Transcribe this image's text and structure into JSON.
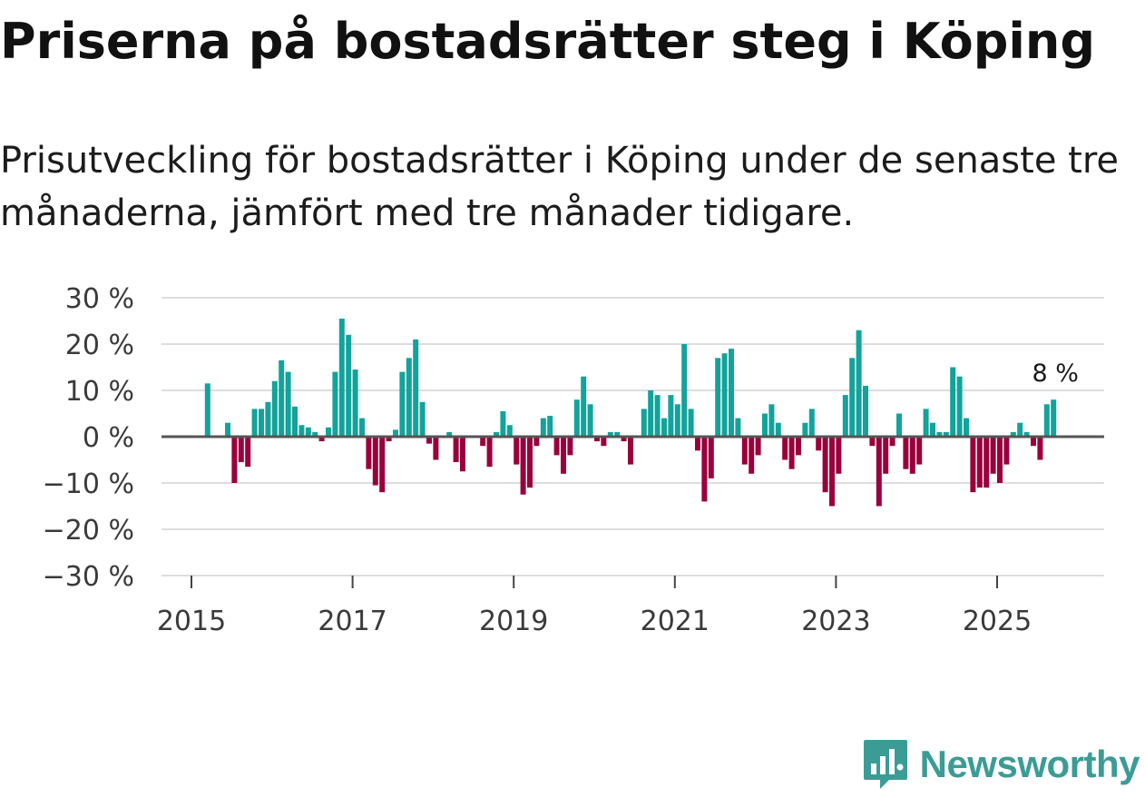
{
  "title": "Priserna på bostadsrätter steg i Köping",
  "subtitle": "Prisutveckling för bostadsrätter i Köping under de senaste tre månaderna, jämfört med tre månader tidigare.",
  "brand": {
    "name": "Newsworthy",
    "color": "#3b9c96",
    "icon": "newsworthy-logo-icon"
  },
  "colors": {
    "positive": "#12a39b",
    "negative": "#9a003c",
    "grid": "#dddddd",
    "zero_line": "#555555"
  },
  "chart_data": {
    "type": "bar",
    "title": "Priserna på bostadsrätter steg i Köping",
    "xlabel": "",
    "ylabel": "",
    "ylim": [
      -30,
      30
    ],
    "yticks": [
      30,
      20,
      10,
      0,
      -10,
      -20,
      -30
    ],
    "ytick_labels": [
      "30 %",
      "20 %",
      "10 %",
      "0 %",
      "−10 %",
      "−20 %",
      "−30 %"
    ],
    "xticks": [
      "2015",
      "2017",
      "2019",
      "2021",
      "2023",
      "2025"
    ],
    "start": "2015-01",
    "unit": "%",
    "annotation": {
      "label": "8 %",
      "value": 8
    },
    "values": [
      0,
      0,
      11.5,
      0,
      0,
      3,
      -10,
      -5.5,
      -6.5,
      6,
      6,
      7.5,
      12,
      16.5,
      14,
      6.5,
      2.5,
      2,
      1,
      -1,
      2,
      14,
      25.5,
      22,
      14.5,
      4,
      -7,
      -10.5,
      -12,
      -1,
      1.5,
      14,
      17,
      21,
      7.5,
      -1.5,
      -5,
      0,
      1,
      -5.5,
      -7.5,
      0,
      0,
      -2,
      -6.5,
      1,
      5.5,
      2.5,
      -6,
      -12.5,
      -11,
      -2,
      4,
      4.5,
      -4,
      -8,
      -4,
      8,
      13,
      7,
      -1,
      -2,
      1,
      1,
      -1,
      -6,
      0,
      6,
      10,
      9,
      4,
      9,
      7,
      20,
      6,
      -3,
      -14,
      -9,
      17,
      18,
      19,
      4,
      -6,
      -8,
      -4,
      5,
      7,
      3,
      -5,
      -7,
      -4,
      3,
      6,
      -3,
      -12,
      -15,
      -8,
      9,
      17,
      23,
      11,
      -2,
      -15,
      -8,
      -2,
      5,
      -7,
      -8,
      -6,
      6,
      3,
      1,
      1,
      15,
      13,
      4,
      -12,
      -11,
      -11,
      -8,
      -10,
      -6,
      1,
      3,
      1,
      -2,
      -5,
      7,
      8
    ]
  }
}
